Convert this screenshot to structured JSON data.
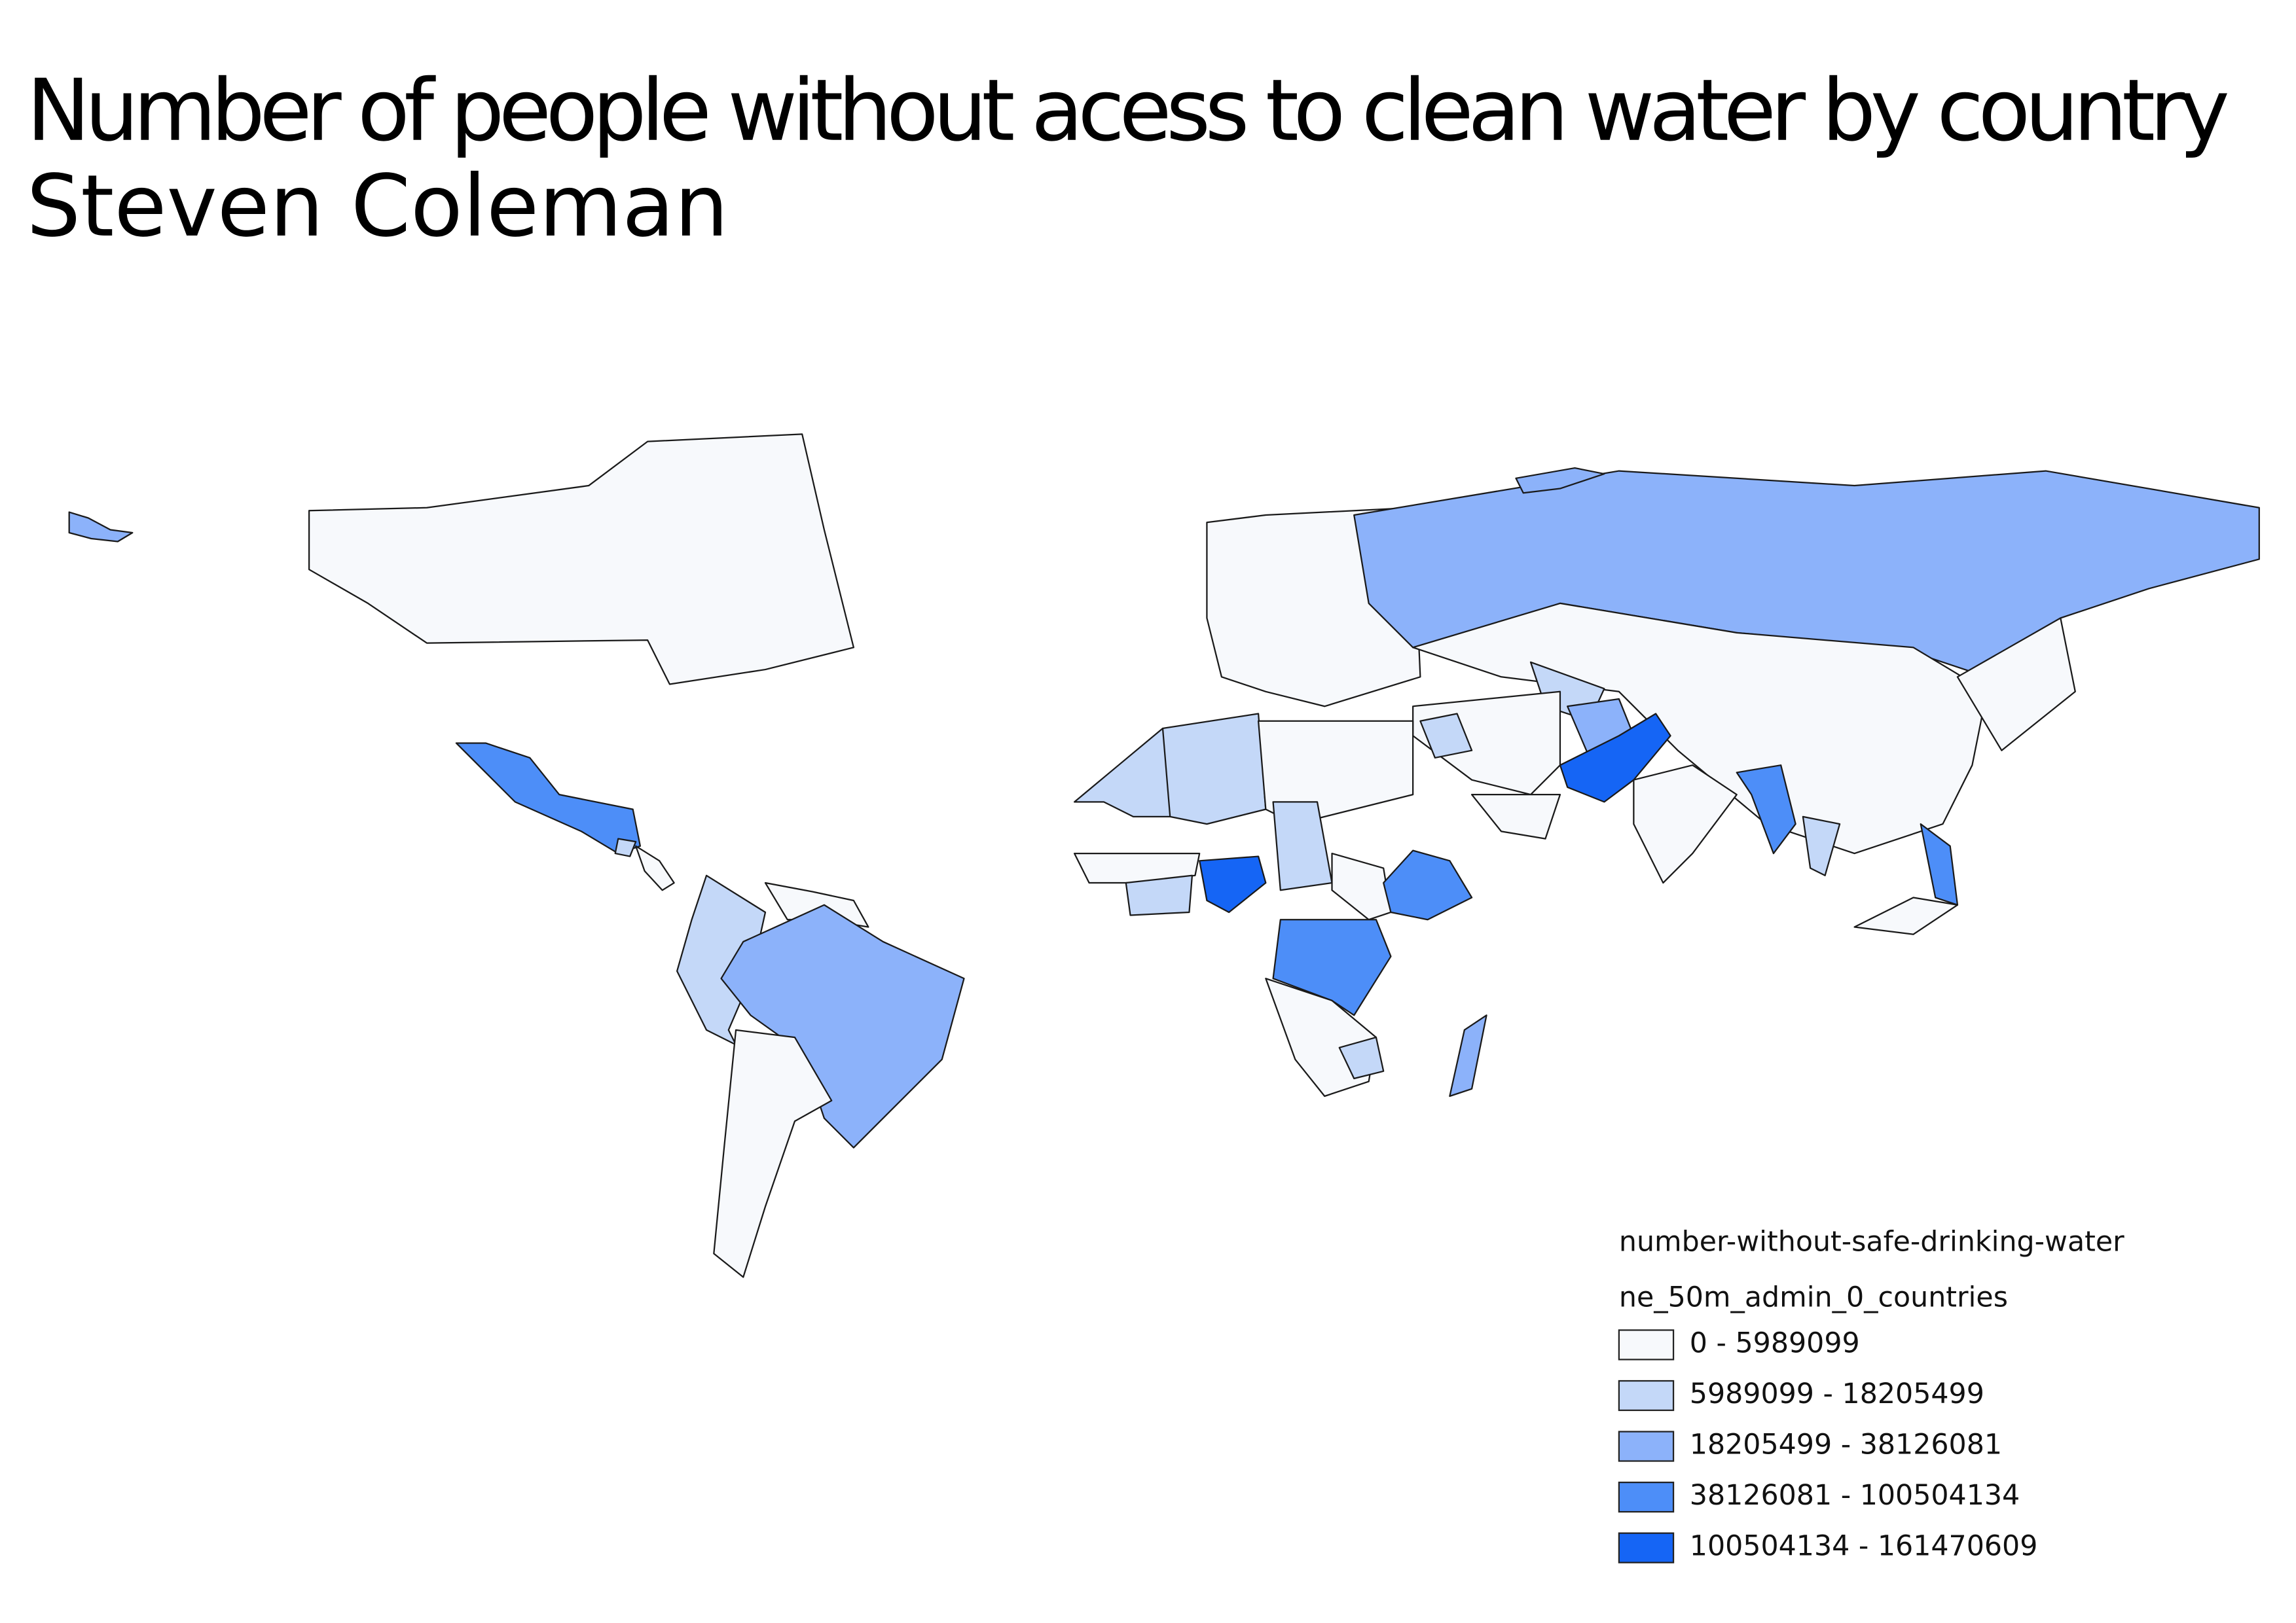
{
  "header": {
    "title_line1": "Number of people without acess to clean water by country",
    "title_line2": "Steven Coleman"
  },
  "legend": {
    "title": "number-without-safe-drinking-water",
    "layer": "ne_50m_admin_0_countries",
    "classes": [
      {
        "label": "0 - 5989099",
        "color": "#f7f9fc"
      },
      {
        "label": "5989099 - 18205499",
        "color": "#c4d8f8"
      },
      {
        "label": "18205499 - 38126081",
        "color": "#8cb2fa"
      },
      {
        "label": "38126081 - 100504134",
        "color": "#4d8ef8"
      },
      {
        "label": "100504134 - 161470609",
        "color": "#1565f5"
      }
    ]
  }
}
